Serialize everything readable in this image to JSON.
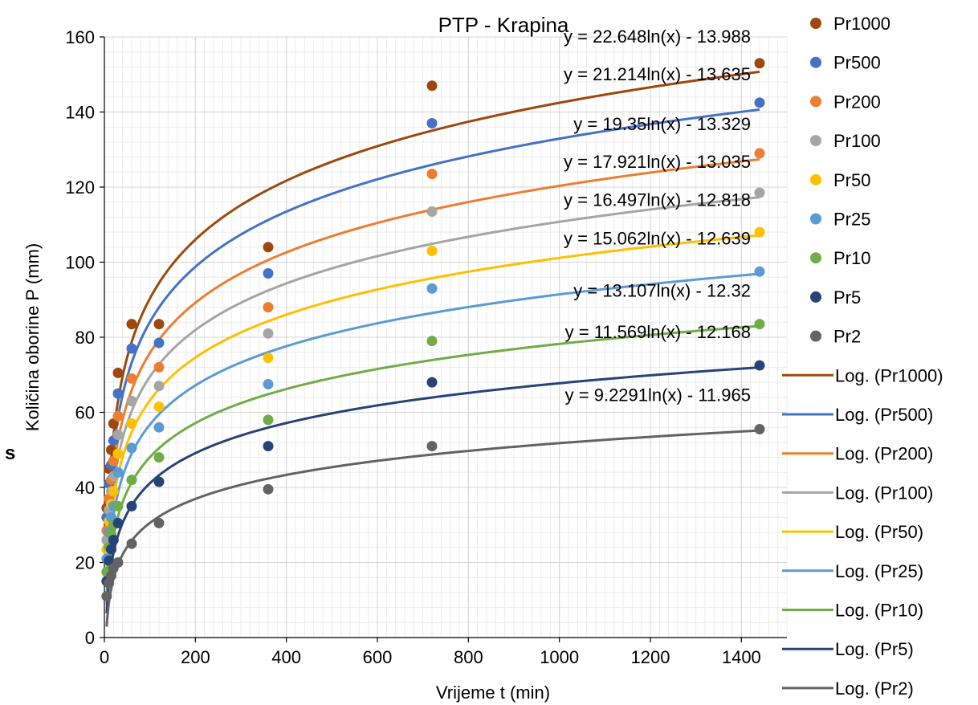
{
  "chart_data": {
    "type": "scatter",
    "title": "PTP - Krapina",
    "xlabel": "Vrijeme t (min)",
    "ylabel": "Količina oborine P (mm)",
    "stray_label": "s",
    "xlim": [
      0,
      1500
    ],
    "ylim": [
      0,
      160
    ],
    "xticks": [
      0,
      200,
      400,
      600,
      800,
      1000,
      1200,
      1400
    ],
    "yticks": [
      0,
      20,
      40,
      60,
      80,
      100,
      120,
      140,
      160
    ],
    "x_tick_labels": [
      "0",
      "200",
      "400",
      "600",
      "800",
      "1000",
      "1200",
      "1400"
    ],
    "y_tick_labels": [
      "0",
      "20",
      "40",
      "60",
      "80",
      "100",
      "120",
      "140",
      "160"
    ],
    "grid": true,
    "legend_position": "right",
    "x": [
      5,
      10,
      15,
      20,
      30,
      60,
      120,
      360,
      720,
      1440
    ],
    "series": [
      {
        "name": "Pr1000",
        "color": "#9E480E",
        "values": [
          34.5,
          45.0,
          50.0,
          57.0,
          70.5,
          83.5,
          83.5,
          104.0,
          147.0,
          153.0
        ]
      },
      {
        "name": "Pr500",
        "color": "#4472C4",
        "values": [
          32.0,
          41.0,
          46.0,
          52.5,
          65.0,
          77.0,
          78.5,
          97.0,
          137.0,
          142.5
        ]
      },
      {
        "name": "Pr200",
        "color": "#ED7D31",
        "values": [
          28.5,
          37.0,
          42.0,
          47.0,
          59.0,
          69.0,
          72.0,
          88.0,
          123.5,
          129.0
        ]
      },
      {
        "name": "Pr100",
        "color": "#A5A5A5",
        "values": [
          26.0,
          34.0,
          39.0,
          43.0,
          54.0,
          63.0,
          67.0,
          81.0,
          113.5,
          118.5
        ]
      },
      {
        "name": "Pr50",
        "color": "#FFC000",
        "values": [
          23.5,
          31.0,
          35.5,
          39.0,
          49.0,
          57.0,
          61.5,
          74.5,
          103.0,
          108.0
        ]
      },
      {
        "name": "Pr25",
        "color": "#5B9BD5",
        "values": [
          21.0,
          28.0,
          32.0,
          35.0,
          44.0,
          50.5,
          56.0,
          67.5,
          93.0,
          97.5
        ]
      },
      {
        "name": "Pr10",
        "color": "#70AD47",
        "values": [
          17.5,
          24.0,
          27.5,
          30.0,
          35.0,
          42.0,
          48.0,
          58.0,
          79.0,
          83.5
        ]
      },
      {
        "name": "Pr5",
        "color": "#264478",
        "values": [
          15.0,
          20.5,
          23.5,
          26.0,
          30.5,
          35.0,
          41.5,
          51.0,
          68.0,
          72.5
        ]
      },
      {
        "name": "Pr2",
        "color": "#636363",
        "values": [
          11.0,
          14.5,
          16.5,
          18.5,
          20.0,
          25.0,
          30.5,
          39.5,
          51.0,
          55.5
        ]
      }
    ],
    "trendlines": [
      {
        "name": "Log. (Pr1000)",
        "color": "#9E480E",
        "a": 22.648,
        "b": -13.988,
        "equation": "y = 22.648ln(x) - 13.988"
      },
      {
        "name": "Log. (Pr500)",
        "color": "#4472C4",
        "a": 21.214,
        "b": -13.635,
        "equation": "y = 21.214ln(x) - 13.635"
      },
      {
        "name": "Log. (Pr200)",
        "color": "#ED7D31",
        "a": 19.35,
        "b": -13.329,
        "equation": "y = 19.35ln(x) - 13.329"
      },
      {
        "name": "Log. (Pr100)",
        "color": "#A5A5A5",
        "a": 17.921,
        "b": -13.035,
        "equation": "y = 17.921ln(x) - 13.035"
      },
      {
        "name": "Log. (Pr50)",
        "color": "#FFC000",
        "a": 16.497,
        "b": -12.818,
        "equation": "y = 16.497ln(x) - 12.818"
      },
      {
        "name": "Log. (Pr25)",
        "color": "#5B9BD5",
        "a": 15.062,
        "b": -12.639,
        "equation": "y = 15.062ln(x) - 12.639"
      },
      {
        "name": "Log. (Pr10)",
        "color": "#70AD47",
        "a": 13.107,
        "b": -12.32,
        "equation": "y = 13.107ln(x) - 12.32"
      },
      {
        "name": "Log. (Pr5)",
        "color": "#264478",
        "a": 11.569,
        "b": -12.168,
        "equation": "y = 11.569ln(x) - 12.168"
      },
      {
        "name": "Log. (Pr2)",
        "color": "#636363",
        "a": 9.2291,
        "b": -11.965,
        "equation": "y = 9.2291ln(x) - 11.965"
      }
    ]
  }
}
